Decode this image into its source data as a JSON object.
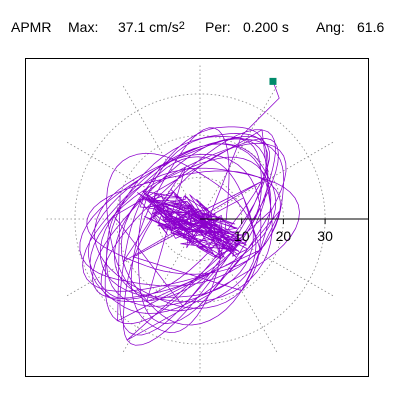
{
  "header": {
    "label": "APMR",
    "max_label": "Max:",
    "max_value": "37.1 cm/s",
    "max_exponent": "2",
    "per_label": "Per:",
    "per_value": "0.200 s",
    "ang_label": "Ang:",
    "ang_value": "61.6"
  },
  "chart_data": {
    "type": "polar-orbit",
    "title": "",
    "radial_ticks": [
      10,
      20,
      30
    ],
    "radial_tick_labels": [
      "10",
      "20",
      "30"
    ],
    "radial_range": [
      0,
      37.1
    ],
    "grid": true,
    "grid_style": "dotted",
    "peak_marker": {
      "x": 17.5,
      "y": 33.0,
      "color": "#008b6b"
    },
    "colors": {
      "trace": "#8b00cc",
      "grid": "#888888",
      "axis": "#000000",
      "marker": "#008b6b"
    }
  }
}
